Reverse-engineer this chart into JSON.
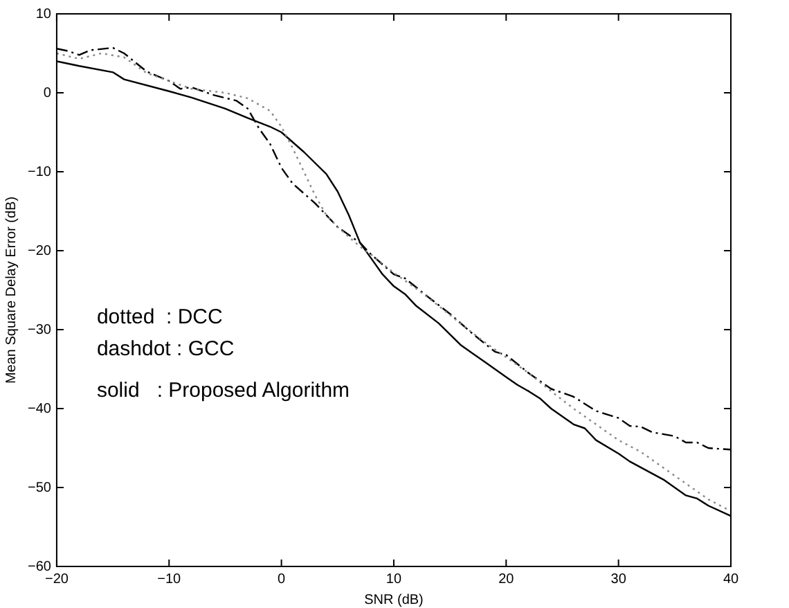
{
  "chart_data": {
    "type": "line",
    "xlabel": "SNR (dB)",
    "ylabel": "Mean Square Delay Error (dB)",
    "xlim": [
      -20,
      40
    ],
    "xticks": [
      -20,
      -10,
      0,
      10,
      20,
      30,
      40
    ],
    "ylim": [
      -60,
      10
    ],
    "yticks": [
      -60,
      -50,
      -40,
      -30,
      -20,
      -10,
      0,
      10
    ],
    "grid": false,
    "legend": false,
    "marker": "none",
    "annotations": [
      "dotted  : DCC",
      "dashdot : GCC",
      "solid   : Proposed Algorithm"
    ],
    "series": [
      {
        "color": "#888888",
        "line_style": "dotted",
        "x": [
          -20,
          -18,
          -16,
          -14,
          -12,
          -10,
          -8,
          -5,
          -3,
          -1,
          0,
          1,
          2,
          3,
          4,
          5,
          7,
          8,
          10,
          12,
          14,
          16,
          18,
          20,
          22,
          24,
          26,
          28,
          30,
          32,
          34,
          36,
          38,
          40
        ],
        "values": [
          5,
          4.3,
          5,
          4.5,
          2.5,
          1.5,
          0.5,
          0,
          -0.7,
          -2.3,
          -4.3,
          -7,
          -10,
          -13,
          -15.5,
          -17,
          -19.5,
          -20.5,
          -22.8,
          -24.8,
          -27,
          -29.3,
          -31.5,
          -33.5,
          -35.5,
          -37.8,
          -40,
          -42,
          -44,
          -45.5,
          -47.5,
          -49.5,
          -51.5,
          -53
        ]
      },
      {
        "color": "#000000",
        "line_style": "dashdot",
        "x": [
          -20,
          -19,
          -18,
          -17,
          -15,
          -14,
          -12,
          -10,
          -9,
          -8,
          -6,
          -4,
          -3,
          -2,
          -1,
          0,
          1,
          3,
          5,
          7,
          8,
          10,
          11,
          13,
          15,
          17,
          19,
          20,
          22,
          24,
          26,
          28,
          30,
          31,
          32,
          33,
          35,
          36,
          37,
          38,
          40
        ],
        "values": [
          5.6,
          5.3,
          4.8,
          5.4,
          5.7,
          5,
          2.7,
          1.5,
          0.5,
          0.7,
          -0.3,
          -1,
          -2,
          -4.5,
          -6.5,
          -9.5,
          -11.5,
          -14,
          -17,
          -19,
          -20.5,
          -23,
          -23.5,
          -25.8,
          -28,
          -30.5,
          -32.8,
          -33.2,
          -35.5,
          -37.5,
          -38.5,
          -40.3,
          -41.2,
          -42.2,
          -42.3,
          -43,
          -43.5,
          -44.3,
          -44.3,
          -45,
          -45.2
        ]
      },
      {
        "color": "#000000",
        "line_style": "solid",
        "x": [
          -20,
          -18,
          -15,
          -14,
          -10,
          -8,
          -5,
          -3,
          -1,
          0,
          2,
          4,
          5,
          6,
          7,
          8,
          9,
          10,
          11,
          12,
          14,
          16,
          18,
          20,
          21,
          22,
          23,
          24,
          26,
          27,
          28,
          30,
          31,
          34,
          36,
          37,
          38,
          40
        ],
        "values": [
          4,
          3.4,
          2.6,
          1.7,
          0.2,
          -0.6,
          -2,
          -3.2,
          -4.3,
          -5,
          -7.5,
          -10.3,
          -12.5,
          -15.5,
          -19,
          -21,
          -23,
          -24.5,
          -25.5,
          -27,
          -29.2,
          -32,
          -34,
          -36,
          -37,
          -37.8,
          -38.7,
          -40,
          -42,
          -42.5,
          -44,
          -45.7,
          -46.7,
          -49,
          -51,
          -51.4,
          -52.3,
          -53.6
        ]
      }
    ]
  }
}
